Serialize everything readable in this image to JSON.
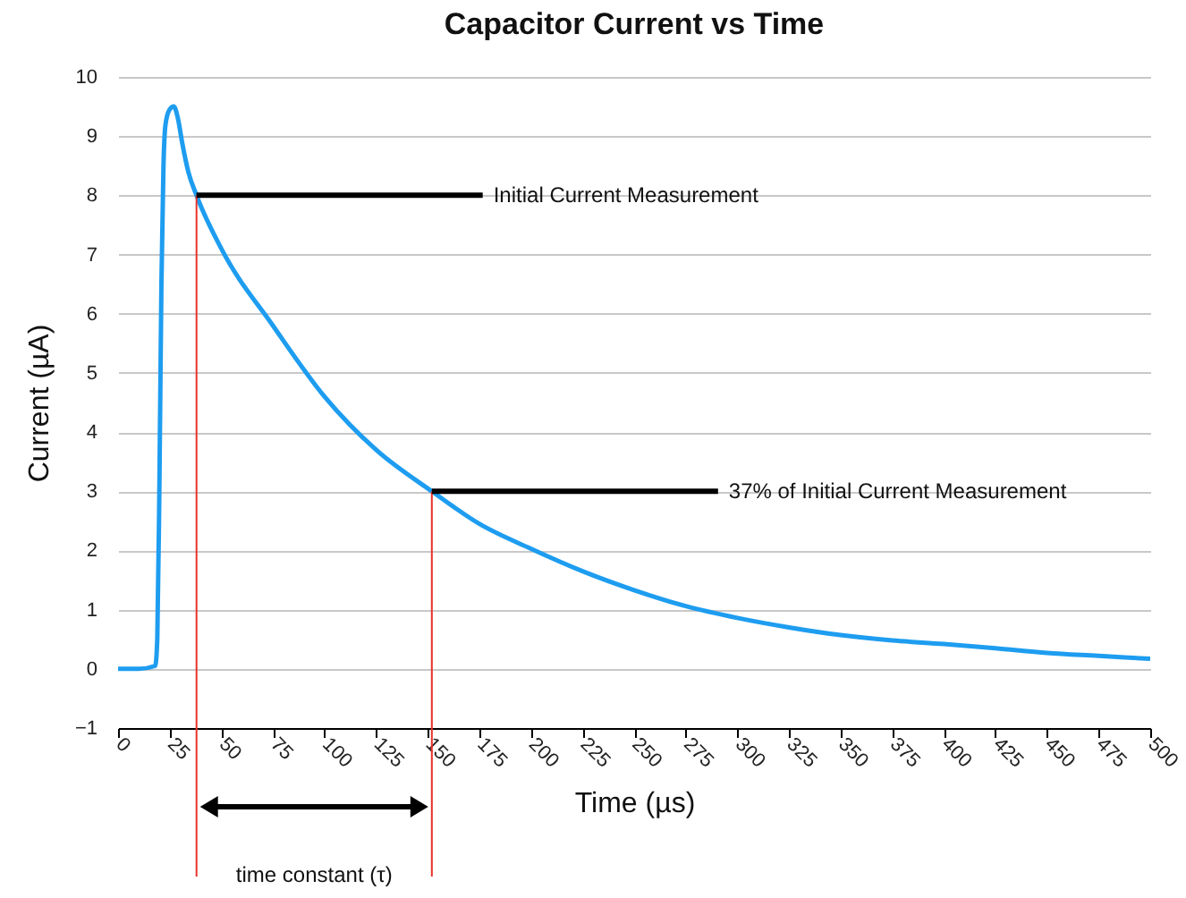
{
  "chart_data": {
    "type": "line",
    "title": "Capacitor Current vs Time",
    "xlabel": "Time (µs)",
    "ylabel": "Current (µA)",
    "x": [
      0,
      10,
      18,
      19,
      20,
      21,
      22,
      23,
      25,
      27,
      29,
      31,
      34,
      38,
      50,
      75,
      100,
      125,
      152,
      175,
      200,
      225,
      250,
      275,
      300,
      325,
      350,
      375,
      400,
      425,
      450,
      475,
      500
    ],
    "series": [
      {
        "color": "#1e9df0",
        "values": [
          0,
          0,
          0.05,
          0.5,
          3,
          6.5,
          8.5,
          9.2,
          9.45,
          9.5,
          9.3,
          8.9,
          8.4,
          8.0,
          7.1,
          5.8,
          4.6,
          3.7,
          3.0,
          2.45,
          2.03,
          1.65,
          1.33,
          1.06,
          0.86,
          0.7,
          0.57,
          0.48,
          0.42,
          0.35,
          0.27,
          0.22,
          0.17
        ]
      }
    ],
    "xlim": [
      0,
      500
    ],
    "xticks": [
      0,
      25,
      50,
      75,
      100,
      125,
      150,
      175,
      200,
      225,
      250,
      275,
      300,
      325,
      350,
      375,
      400,
      425,
      450,
      475,
      500
    ],
    "ylim": [
      -1,
      10
    ],
    "yticks": [
      -1,
      0,
      1,
      2,
      3,
      4,
      5,
      6,
      7,
      8,
      9,
      10
    ],
    "grid": "y",
    "marker": "none",
    "line_style": "solid",
    "ref_lines": [
      {
        "axis": "x",
        "value": 38,
        "color": "#e8322b"
      },
      {
        "axis": "x",
        "value": 152,
        "color": "#e8322b"
      }
    ],
    "annotations": [
      {
        "text": "Initial Current Measurement",
        "x": 38,
        "y": 8
      },
      {
        "text": "37% of Initial Current Measurement",
        "x": 152,
        "y": 3
      },
      "time constant (τ)"
    ]
  }
}
